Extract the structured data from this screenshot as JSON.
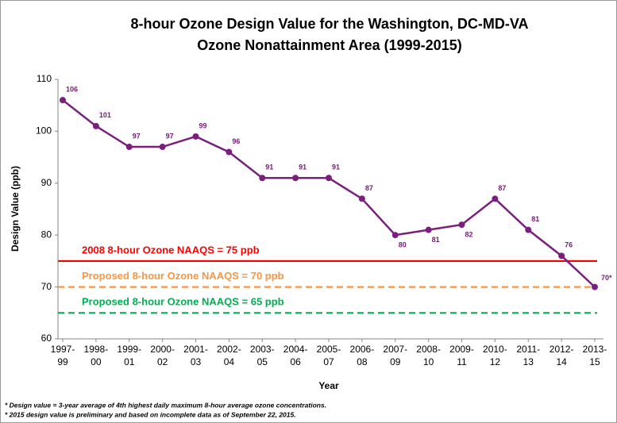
{
  "chart_data": {
    "type": "line",
    "title": [
      "8-hour Ozone Design Value for the Washington, DC-MD-VA",
      "Ozone Nonattainment Area (1999-2015)"
    ],
    "x_label": "Year",
    "y_label": "Design Value (ppb)",
    "categories": [
      [
        "1997-",
        "99"
      ],
      [
        "1998-",
        "00"
      ],
      [
        "1999-",
        "01"
      ],
      [
        "2000-",
        "02"
      ],
      [
        "2001-",
        "03"
      ],
      [
        "2002-",
        "04"
      ],
      [
        "2003-",
        "05"
      ],
      [
        "2004-",
        "06"
      ],
      [
        "2005-",
        "07"
      ],
      [
        "2006-",
        "08"
      ],
      [
        "2007-",
        "09"
      ],
      [
        "2008-",
        "10"
      ],
      [
        "2009-",
        "11"
      ],
      [
        "2010-",
        "12"
      ],
      [
        "2011-",
        "13"
      ],
      [
        "2012-",
        "14"
      ],
      [
        "2013-",
        "15"
      ]
    ],
    "series": [
      {
        "name": "Design Value",
        "color": "#7b1f7e",
        "values": [
          106,
          101,
          97,
          97,
          99,
          96,
          91,
          91,
          91,
          87,
          80,
          81,
          82,
          87,
          81,
          76,
          70
        ],
        "value_labels": [
          "106",
          "101",
          "97",
          "97",
          "99",
          "96",
          "91",
          "91",
          "91",
          "87",
          "80",
          "81",
          "82",
          "87",
          "81",
          "76",
          "70*"
        ]
      }
    ],
    "ylim": [
      60,
      110
    ],
    "yticks": [
      60,
      70,
      80,
      90,
      100,
      110
    ],
    "reference_lines": [
      {
        "value": 75,
        "label": "2008 8-hour Ozone NAAQS = 75 ppb",
        "color": "#ff0000",
        "dashed": false
      },
      {
        "value": 70,
        "label": "Proposed 8-hour Ozone NAAQS = 70 ppb",
        "color": "#f79646",
        "dashed": true
      },
      {
        "value": 65,
        "label": "Proposed 8-hour Ozone NAAQS = 65 ppb",
        "color": "#00b050",
        "dashed": true
      }
    ],
    "footnotes": [
      "* Design value = 3-year average of 4th highest daily maximum 8-hour average ozone concentrations.",
      "* 2015 design value is preliminary and based on incomplete data as of September 22, 2015."
    ]
  }
}
